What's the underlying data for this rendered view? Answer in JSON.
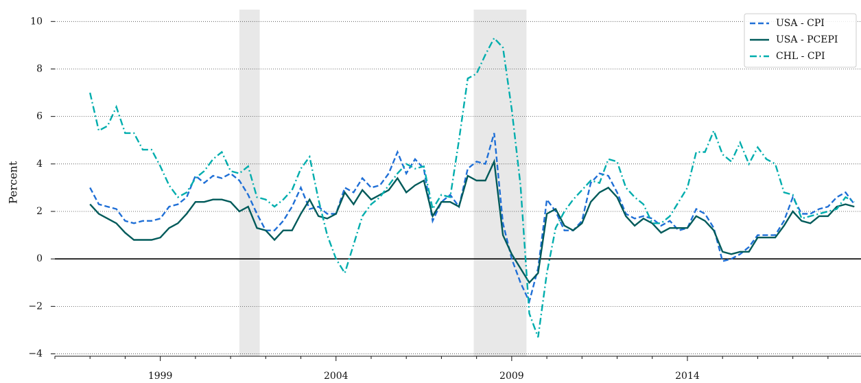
{
  "chart_data": {
    "type": "line",
    "ylabel": "Percent",
    "x": [
      1997.0,
      1997.25,
      1997.5,
      1997.75,
      1998.0,
      1998.25,
      1998.5,
      1998.75,
      1999.0,
      1999.25,
      1999.5,
      1999.75,
      2000.0,
      2000.25,
      2000.5,
      2000.75,
      2001.0,
      2001.25,
      2001.5,
      2001.75,
      2002.0,
      2002.25,
      2002.5,
      2002.75,
      2003.0,
      2003.25,
      2003.5,
      2003.75,
      2004.0,
      2004.25,
      2004.5,
      2004.75,
      2005.0,
      2005.25,
      2005.5,
      2005.75,
      2006.0,
      2006.25,
      2006.5,
      2006.75,
      2007.0,
      2007.25,
      2007.5,
      2007.75,
      2008.0,
      2008.25,
      2008.5,
      2008.75,
      2009.0,
      2009.25,
      2009.5,
      2009.75,
      2010.0,
      2010.25,
      2010.5,
      2010.75,
      2011.0,
      2011.25,
      2011.5,
      2011.75,
      2012.0,
      2012.25,
      2012.5,
      2012.75,
      2013.0,
      2013.25,
      2013.5,
      2013.75,
      2014.0,
      2014.25,
      2014.5,
      2014.75,
      2015.0,
      2015.25,
      2015.5,
      2015.75,
      2016.0,
      2016.25,
      2016.5,
      2016.75,
      2017.0,
      2017.25,
      2017.5,
      2017.75,
      2018.0,
      2018.25,
      2018.5,
      2018.75
    ],
    "series": [
      {
        "name": "USA - CPI",
        "color": "#1f6fd6",
        "linestyle": "dashed",
        "values": [
          3.0,
          2.3,
          2.2,
          2.1,
          1.6,
          1.5,
          1.6,
          1.6,
          1.7,
          2.2,
          2.3,
          2.6,
          3.5,
          3.2,
          3.5,
          3.4,
          3.6,
          3.3,
          2.7,
          1.9,
          1.2,
          1.2,
          1.6,
          2.2,
          3.0,
          2.1,
          2.2,
          1.9,
          1.9,
          3.0,
          2.8,
          3.4,
          3.0,
          3.1,
          3.6,
          4.5,
          3.6,
          4.2,
          3.8,
          1.6,
          2.4,
          2.7,
          2.2,
          3.8,
          4.1,
          4.0,
          5.3,
          1.5,
          0.0,
          -1.0,
          -1.8,
          -0.4,
          2.5,
          2.0,
          1.2,
          1.2,
          1.6,
          3.2,
          3.6,
          3.5,
          2.8,
          1.9,
          1.7,
          1.8,
          1.7,
          1.4,
          1.6,
          1.2,
          1.3,
          2.1,
          1.9,
          1.3,
          -0.1,
          0.0,
          0.2,
          0.5,
          1.0,
          1.0,
          1.0,
          1.6,
          2.6,
          1.9,
          1.9,
          2.1,
          2.2,
          2.6,
          2.8,
          2.3
        ]
      },
      {
        "name": "USA - PCEPI",
        "color": "#005a5a",
        "linestyle": "solid",
        "values": [
          2.3,
          1.9,
          1.7,
          1.5,
          1.1,
          0.8,
          0.8,
          0.8,
          0.9,
          1.3,
          1.5,
          1.9,
          2.4,
          2.4,
          2.5,
          2.5,
          2.4,
          2.0,
          2.2,
          1.3,
          1.2,
          0.8,
          1.2,
          1.2,
          1.9,
          2.5,
          1.8,
          1.7,
          1.9,
          2.8,
          2.3,
          2.9,
          2.5,
          2.7,
          2.9,
          3.4,
          2.8,
          3.1,
          3.3,
          1.8,
          2.4,
          2.4,
          2.2,
          3.5,
          3.3,
          3.3,
          4.1,
          1.0,
          0.2,
          -0.4,
          -1.0,
          -0.6,
          1.9,
          2.1,
          1.4,
          1.2,
          1.5,
          2.4,
          2.8,
          3.0,
          2.6,
          1.8,
          1.4,
          1.7,
          1.5,
          1.1,
          1.3,
          1.3,
          1.3,
          1.8,
          1.6,
          1.2,
          0.3,
          0.2,
          0.3,
          0.3,
          0.9,
          0.9,
          0.9,
          1.4,
          2.0,
          1.6,
          1.5,
          1.8,
          1.8,
          2.2,
          2.3,
          2.2
        ]
      },
      {
        "name": "CHL - CPI",
        "color": "#00adad",
        "linestyle": "dashdot",
        "values": [
          7.0,
          5.4,
          5.6,
          6.4,
          5.3,
          5.3,
          4.6,
          4.6,
          3.9,
          3.1,
          2.6,
          2.8,
          3.4,
          3.7,
          4.2,
          4.5,
          3.7,
          3.6,
          3.9,
          2.6,
          2.5,
          2.2,
          2.5,
          2.9,
          3.8,
          4.3,
          2.5,
          1.0,
          0.0,
          -0.6,
          0.6,
          1.8,
          2.3,
          2.6,
          3.1,
          3.6,
          4.0,
          3.8,
          3.9,
          2.1,
          2.7,
          2.6,
          5.0,
          7.6,
          7.8,
          8.6,
          9.3,
          8.9,
          6.3,
          3.1,
          -2.3,
          -3.3,
          -0.6,
          1.3,
          2.0,
          2.5,
          2.9,
          3.3,
          3.2,
          4.2,
          4.1,
          3.0,
          2.6,
          2.3,
          1.5,
          1.5,
          1.8,
          2.4,
          3.0,
          4.5,
          4.5,
          5.4,
          4.4,
          4.1,
          4.9,
          4.0,
          4.7,
          4.2,
          4.0,
          2.8,
          2.7,
          1.7,
          1.8,
          1.9,
          2.0,
          2.1,
          2.6,
          2.4
        ]
      }
    ],
    "xlim": [
      1996.0,
      2018.94
    ],
    "xticks": [
      1999,
      2004,
      2009,
      2014
    ],
    "xminorticks": [
      1996,
      1997,
      1998,
      2000,
      2001,
      2002,
      2003,
      2005,
      2006,
      2007,
      2008,
      2010,
      2011,
      2012,
      2013,
      2015,
      2016,
      2017,
      2018
    ],
    "ylim": [
      -4.1,
      10.5
    ],
    "yticks": [
      {
        "value": -4,
        "label": "−4"
      },
      {
        "value": -2,
        "label": "−2"
      },
      0,
      2,
      4,
      6,
      8,
      10
    ],
    "grid": true,
    "zero_line": 0,
    "shaded_regions": [
      [
        2001.25,
        2001.83
      ],
      [
        2007.92,
        2009.42
      ]
    ],
    "legend": "upper right"
  }
}
